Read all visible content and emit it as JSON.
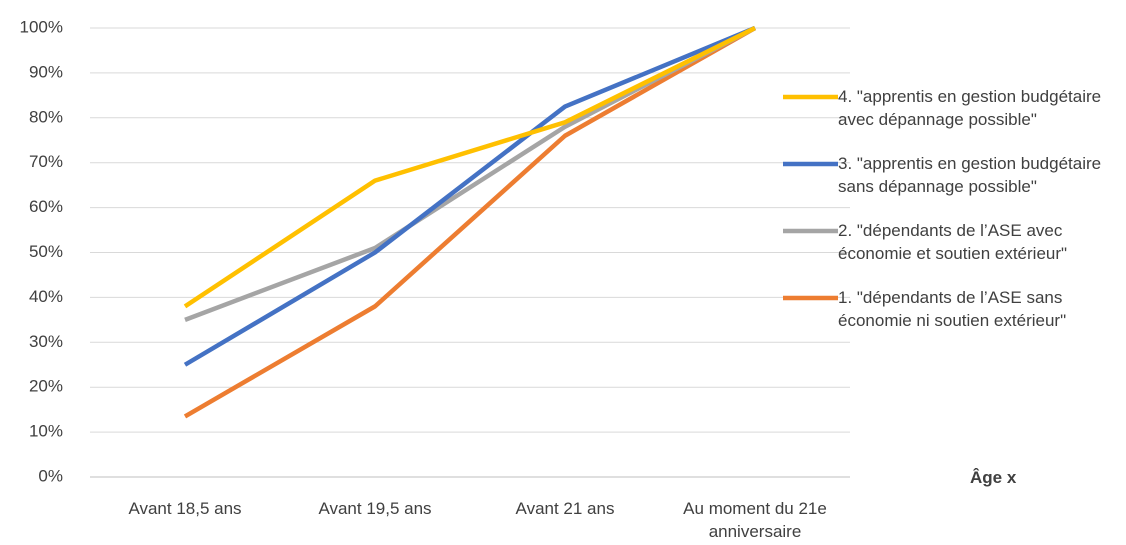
{
  "chart_data": {
    "type": "line",
    "categories": [
      "Avant 18,5 ans",
      "Avant 19,5 ans",
      "Avant 21 ans",
      "Au moment du 21e anniversaire"
    ],
    "series": [
      {
        "name": "4. \"apprentis en gestion budgétaire avec dépannage possible\"",
        "color": "#FFC000",
        "values": [
          38,
          66,
          79,
          100
        ]
      },
      {
        "name": "3. \"apprentis en gestion budgétaire sans dépannage possible\"",
        "color": "#4472C4",
        "values": [
          25,
          50,
          82.5,
          100
        ]
      },
      {
        "name": "2. \"dépendants de l’ASE avec économie et soutien extérieur\"",
        "color": "#A5A5A5",
        "values": [
          35,
          51,
          78,
          100
        ]
      },
      {
        "name": "1. \"dépendants de l’ASE sans économie ni soutien extérieur\"",
        "color": "#ED7D31",
        "values": [
          13.5,
          38,
          76,
          100
        ]
      }
    ],
    "x_label": "Âge x",
    "ylim": [
      0,
      100
    ],
    "yticks": [
      {
        "value": 0,
        "label": "0%"
      },
      {
        "value": 10,
        "label": "10%"
      },
      {
        "value": 20,
        "label": "20%"
      },
      {
        "value": 30,
        "label": "30%"
      },
      {
        "value": 40,
        "label": "40%"
      },
      {
        "value": 50,
        "label": "50%"
      },
      {
        "value": 60,
        "label": "60%"
      },
      {
        "value": 70,
        "label": "70%"
      },
      {
        "value": 80,
        "label": "80%"
      },
      {
        "value": 90,
        "label": "90%"
      },
      {
        "value": 100,
        "label": "100%"
      }
    ],
    "grid": true,
    "legend": "right"
  }
}
